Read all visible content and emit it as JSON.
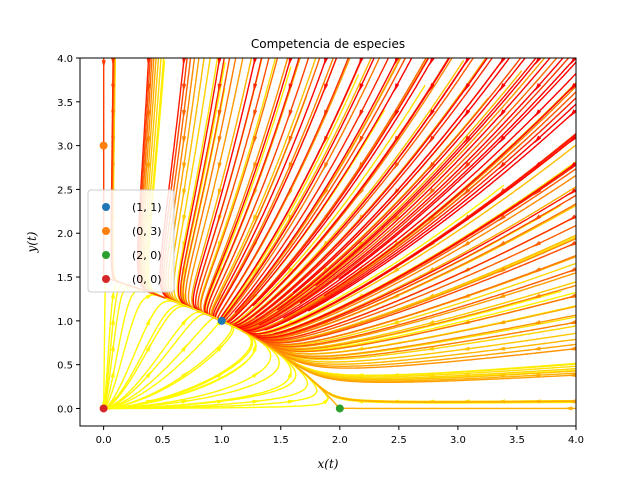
{
  "chart_data": {
    "type": "scatter",
    "title": "Competencia de especies",
    "xlabel": "x(t)",
    "ylabel": "y(t)",
    "xlim": [
      -0.2,
      4.0
    ],
    "ylim": [
      -0.2,
      4.0
    ],
    "xticks": [
      "0.0",
      "0.5",
      "1.0",
      "1.5",
      "2.0",
      "2.5",
      "3.0",
      "3.5",
      "4.0"
    ],
    "yticks": [
      "0.0",
      "0.5",
      "1.0",
      "1.5",
      "2.0",
      "2.5",
      "3.0",
      "3.5",
      "4.0"
    ],
    "grid": false,
    "legend_position": "center-left",
    "streamplot": {
      "system": "dx/dt = x(2 - x - y), dy/dt = y(3 - x - 2y) (estimated)",
      "color_map": "autumn_r (yellow = low speed, red = high speed)"
    },
    "series": [
      {
        "name": "(1, 1)",
        "x": [
          1
        ],
        "y": [
          1
        ],
        "color": "#1f77b4"
      },
      {
        "name": "(0, 3)",
        "x": [
          0
        ],
        "y": [
          3
        ],
        "color": "#ff7f0e"
      },
      {
        "name": "(2, 0)",
        "x": [
          2
        ],
        "y": [
          0
        ],
        "color": "#2ca02c"
      },
      {
        "name": "(0, 0)",
        "x": [
          0
        ],
        "y": [
          0
        ],
        "color": "#d62728"
      }
    ]
  }
}
